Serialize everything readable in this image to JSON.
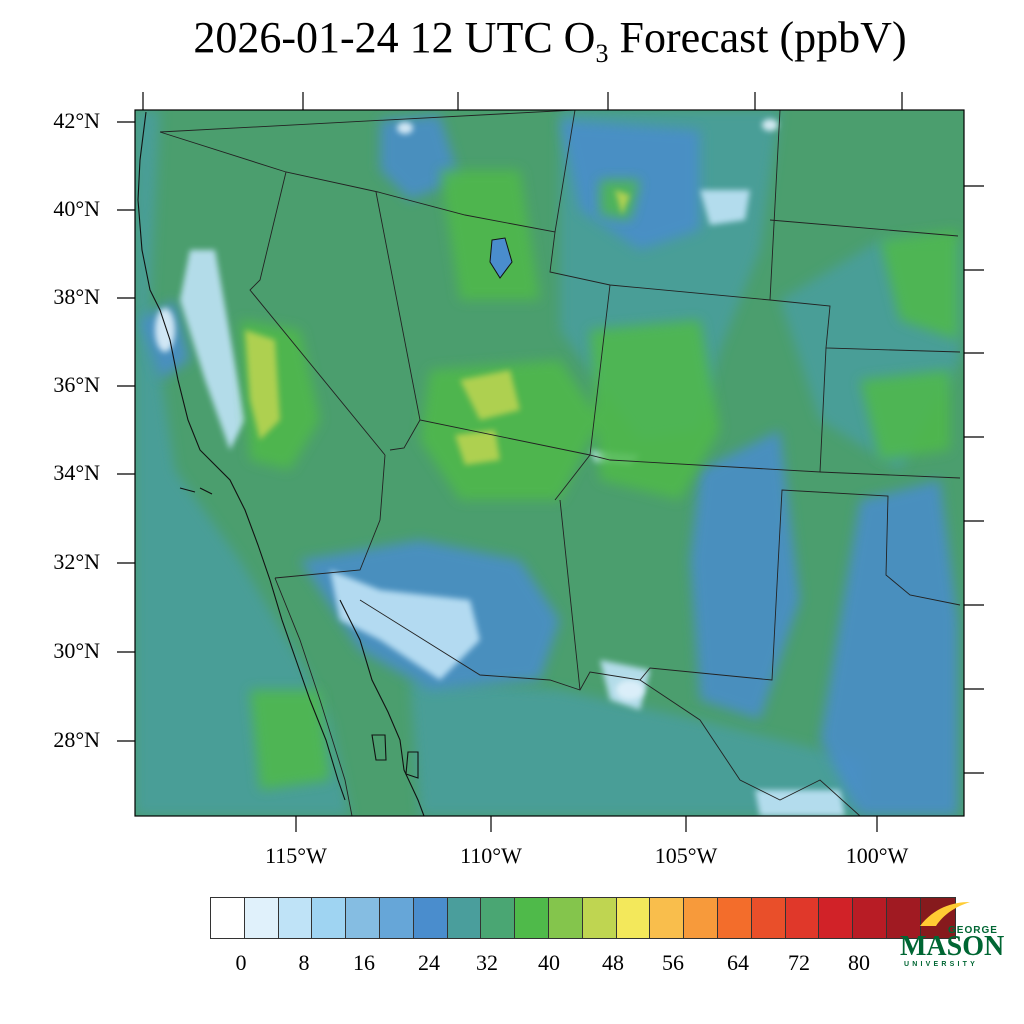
{
  "title": {
    "prefix": "2026-01-24 12 UTC O",
    "subscript": "3",
    "suffix": " Forecast (ppbV)"
  },
  "map": {
    "lat_labels": [
      "42°N",
      "40°N",
      "38°N",
      "36°N",
      "34°N",
      "32°N",
      "30°N",
      "28°N"
    ],
    "lon_labels": [
      "115°W",
      "110°W",
      "105°W",
      "100°W"
    ],
    "background_color": "#4b9e6e"
  },
  "colorbar": {
    "colors": [
      "#ffffff",
      "#e0f1fb",
      "#bfe3f7",
      "#9fd4f2",
      "#85bde2",
      "#66a6d8",
      "#4a8dcd",
      "#4a9e9c",
      "#4aa673",
      "#4fba4a",
      "#84c54c",
      "#bfd551",
      "#f3e85b",
      "#f9be4c",
      "#f79a3b",
      "#f36d2b",
      "#e94f2a",
      "#e0382a",
      "#d12228",
      "#b81c25",
      "#a01a22",
      "#861a1d"
    ],
    "tick_labels": [
      "0",
      "8",
      "16",
      "24",
      "32",
      "40",
      "48",
      "56",
      "64",
      "72",
      "80"
    ]
  },
  "logo": {
    "line1": "GEORGE",
    "line2": "MASON",
    "line3": "UNIVERSITY",
    "green": "#006633",
    "gold": "#ffcc33"
  }
}
